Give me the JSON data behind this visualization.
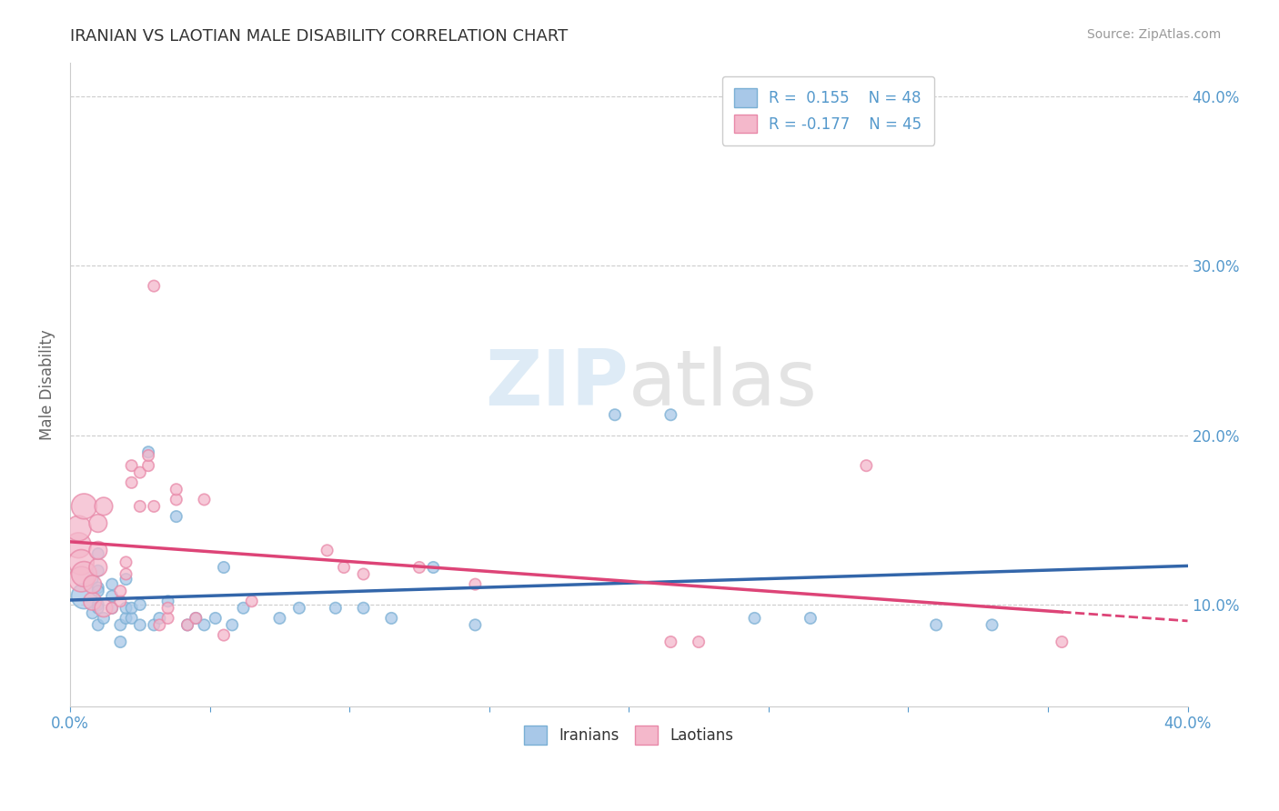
{
  "title": "IRANIAN VS LAOTIAN MALE DISABILITY CORRELATION CHART",
  "source": "Source: ZipAtlas.com",
  "ylabel": "Male Disability",
  "xlabel": "",
  "xlim": [
    0.0,
    0.4
  ],
  "ylim": [
    0.04,
    0.42
  ],
  "xtick_positions": [
    0.0,
    0.05,
    0.1,
    0.15,
    0.2,
    0.25,
    0.3,
    0.35,
    0.4
  ],
  "xtick_labels": [
    "0.0%",
    "",
    "",
    "",
    "",
    "",
    "",
    "",
    "40.0%"
  ],
  "ytick_positions": [
    0.1,
    0.2,
    0.3,
    0.4
  ],
  "ytick_labels": [
    "10.0%",
    "20.0%",
    "30.0%",
    "40.0%"
  ],
  "legend_blue_r": "0.155",
  "legend_blue_n": "48",
  "legend_pink_r": "-0.177",
  "legend_pink_n": "45",
  "blue_scatter_color": "#a8c8e8",
  "pink_scatter_color": "#f4b8cb",
  "blue_edge_color": "#7aafd4",
  "pink_edge_color": "#e888a8",
  "blue_line_color": "#3366aa",
  "pink_line_color": "#dd4477",
  "background_color": "#ffffff",
  "grid_color": "#cccccc",
  "title_color": "#333333",
  "axis_label_color": "#666666",
  "tick_color": "#5599cc",
  "watermark_color": "#ddeeff",
  "iranians_x": [
    0.005,
    0.008,
    0.008,
    0.01,
    0.01,
    0.01,
    0.01,
    0.01,
    0.01,
    0.01,
    0.012,
    0.015,
    0.015,
    0.015,
    0.018,
    0.018,
    0.02,
    0.02,
    0.02,
    0.022,
    0.022,
    0.025,
    0.025,
    0.028,
    0.03,
    0.032,
    0.035,
    0.038,
    0.042,
    0.045,
    0.048,
    0.052,
    0.055,
    0.058,
    0.062,
    0.075,
    0.082,
    0.095,
    0.105,
    0.115,
    0.13,
    0.145,
    0.195,
    0.215,
    0.245,
    0.265,
    0.31,
    0.33
  ],
  "iranians_y": [
    0.105,
    0.095,
    0.115,
    0.1,
    0.11,
    0.12,
    0.13,
    0.088,
    0.098,
    0.108,
    0.092,
    0.098,
    0.105,
    0.112,
    0.088,
    0.078,
    0.092,
    0.098,
    0.115,
    0.092,
    0.098,
    0.1,
    0.088,
    0.19,
    0.088,
    0.092,
    0.102,
    0.152,
    0.088,
    0.092,
    0.088,
    0.092,
    0.122,
    0.088,
    0.098,
    0.092,
    0.098,
    0.098,
    0.098,
    0.092,
    0.122,
    0.088,
    0.212,
    0.212,
    0.092,
    0.092,
    0.088,
    0.088
  ],
  "laotians_x": [
    0.003,
    0.003,
    0.004,
    0.004,
    0.005,
    0.005,
    0.008,
    0.008,
    0.01,
    0.01,
    0.01,
    0.012,
    0.012,
    0.015,
    0.018,
    0.018,
    0.02,
    0.02,
    0.022,
    0.022,
    0.025,
    0.025,
    0.028,
    0.028,
    0.03,
    0.03,
    0.032,
    0.035,
    0.035,
    0.038,
    0.038,
    0.042,
    0.045,
    0.048,
    0.055,
    0.065,
    0.092,
    0.098,
    0.105,
    0.125,
    0.145,
    0.215,
    0.225,
    0.285,
    0.355
  ],
  "laotians_y": [
    0.135,
    0.145,
    0.125,
    0.115,
    0.118,
    0.158,
    0.102,
    0.112,
    0.122,
    0.132,
    0.148,
    0.158,
    0.098,
    0.098,
    0.102,
    0.108,
    0.118,
    0.125,
    0.172,
    0.182,
    0.158,
    0.178,
    0.182,
    0.188,
    0.288,
    0.158,
    0.088,
    0.092,
    0.098,
    0.162,
    0.168,
    0.088,
    0.092,
    0.162,
    0.082,
    0.102,
    0.132,
    0.122,
    0.118,
    0.122,
    0.112,
    0.078,
    0.078,
    0.182,
    0.078
  ],
  "iranians_sizes": [
    400,
    80,
    80,
    80,
    80,
    80,
    80,
    80,
    80,
    80,
    80,
    80,
    80,
    80,
    80,
    80,
    80,
    80,
    80,
    80,
    80,
    80,
    80,
    80,
    80,
    80,
    80,
    80,
    80,
    80,
    80,
    80,
    80,
    80,
    80,
    80,
    80,
    80,
    80,
    80,
    80,
    80,
    80,
    80,
    80,
    80,
    80,
    80
  ],
  "laotians_sizes": [
    400,
    400,
    400,
    400,
    400,
    400,
    200,
    200,
    200,
    200,
    200,
    200,
    200,
    80,
    80,
    80,
    80,
    80,
    80,
    80,
    80,
    80,
    80,
    80,
    80,
    80,
    80,
    80,
    80,
    80,
    80,
    80,
    80,
    80,
    80,
    80,
    80,
    80,
    80,
    80,
    80,
    80,
    80,
    80,
    80
  ]
}
